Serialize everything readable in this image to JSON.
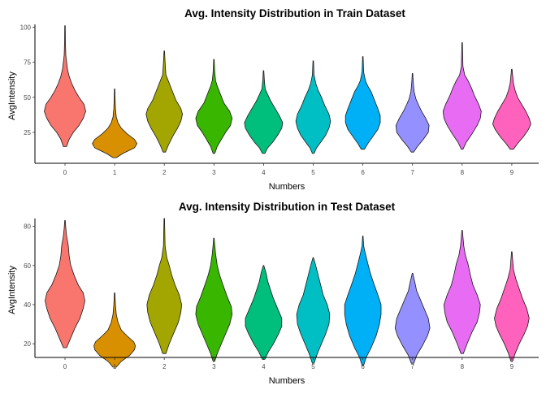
{
  "chart_data": [
    {
      "type": "violin",
      "title": "Avg. Intensity Distribution in Train Dataset",
      "xlabel": "Numbers",
      "ylabel": "AvgIntensity",
      "ylim": [
        3,
        102
      ],
      "yticks": [
        25,
        50,
        75,
        100
      ],
      "categories": [
        "0",
        "1",
        "2",
        "3",
        "4",
        "5",
        "6",
        "7",
        "8",
        "9"
      ],
      "colors": [
        "#F8766D",
        "#D89000",
        "#A3A500",
        "#39B600",
        "#00BF7D",
        "#00BFC4",
        "#00B0F6",
        "#9590FF",
        "#E76BF3",
        "#FF62BC"
      ],
      "violins": [
        {
          "min": 15,
          "max": 101,
          "profile": [
            [
              15,
              2
            ],
            [
              20,
              5
            ],
            [
              25,
              10
            ],
            [
              30,
              17
            ],
            [
              35,
              22
            ],
            [
              40,
              25
            ],
            [
              45,
              23
            ],
            [
              50,
              17
            ],
            [
              55,
              12
            ],
            [
              60,
              8
            ],
            [
              65,
              5
            ],
            [
              70,
              3
            ],
            [
              75,
              2
            ],
            [
              80,
              1
            ],
            [
              90,
              0.5
            ],
            [
              101,
              0.3
            ]
          ]
        },
        {
          "min": 7,
          "max": 56,
          "profile": [
            [
              7,
              2
            ],
            [
              10,
              10
            ],
            [
              14,
              24
            ],
            [
              17,
              27
            ],
            [
              20,
              24
            ],
            [
              24,
              15
            ],
            [
              28,
              8
            ],
            [
              32,
              4
            ],
            [
              36,
              2
            ],
            [
              42,
              1
            ],
            [
              50,
              0.5
            ],
            [
              56,
              0.3
            ]
          ]
        },
        {
          "min": 11,
          "max": 83,
          "profile": [
            [
              11,
              1.5
            ],
            [
              16,
              5
            ],
            [
              22,
              10
            ],
            [
              28,
              16
            ],
            [
              33,
              20
            ],
            [
              38,
              22
            ],
            [
              42,
              20
            ],
            [
              48,
              14
            ],
            [
              54,
              10
            ],
            [
              60,
              6
            ],
            [
              66,
              2
            ],
            [
              75,
              1
            ],
            [
              83,
              0.3
            ]
          ]
        },
        {
          "min": 10,
          "max": 77,
          "profile": [
            [
              10,
              1
            ],
            [
              15,
              4
            ],
            [
              20,
              9
            ],
            [
              25,
              14
            ],
            [
              30,
              20
            ],
            [
              35,
              22
            ],
            [
              40,
              19
            ],
            [
              46,
              12
            ],
            [
              52,
              8
            ],
            [
              58,
              4
            ],
            [
              62,
              2
            ],
            [
              68,
              1
            ],
            [
              77,
              0.3
            ]
          ]
        },
        {
          "min": 10,
          "max": 69,
          "profile": [
            [
              10,
              1.5
            ],
            [
              14,
              5
            ],
            [
              18,
              11
            ],
            [
              23,
              17
            ],
            [
              28,
              22
            ],
            [
              32,
              23
            ],
            [
              37,
              19
            ],
            [
              42,
              14
            ],
            [
              47,
              9
            ],
            [
              52,
              5
            ],
            [
              56,
              2
            ],
            [
              62,
              1
            ],
            [
              69,
              0.3
            ]
          ]
        },
        {
          "min": 10,
          "max": 76,
          "profile": [
            [
              10,
              1
            ],
            [
              14,
              4
            ],
            [
              18,
              9
            ],
            [
              23,
              15
            ],
            [
              28,
              19
            ],
            [
              33,
              21
            ],
            [
              38,
              19
            ],
            [
              44,
              14
            ],
            [
              50,
              10
            ],
            [
              55,
              6
            ],
            [
              60,
              3
            ],
            [
              66,
              1
            ],
            [
              76,
              0.3
            ]
          ]
        },
        {
          "min": 13,
          "max": 79,
          "profile": [
            [
              13,
              2
            ],
            [
              17,
              6
            ],
            [
              22,
              12
            ],
            [
              27,
              18
            ],
            [
              32,
              21
            ],
            [
              37,
              21
            ],
            [
              42,
              18
            ],
            [
              48,
              14
            ],
            [
              54,
              10
            ],
            [
              58,
              6
            ],
            [
              62,
              3
            ],
            [
              68,
              1
            ],
            [
              79,
              0.3
            ]
          ]
        },
        {
          "min": 11,
          "max": 67,
          "profile": [
            [
              11,
              1.5
            ],
            [
              15,
              6
            ],
            [
              20,
              13
            ],
            [
              25,
              19
            ],
            [
              30,
              20
            ],
            [
              35,
              16
            ],
            [
              40,
              11
            ],
            [
              45,
              7
            ],
            [
              49,
              4
            ],
            [
              54,
              2
            ],
            [
              60,
              1
            ],
            [
              67,
              0.3
            ]
          ]
        },
        {
          "min": 13,
          "max": 89,
          "profile": [
            [
              13,
              1
            ],
            [
              18,
              5
            ],
            [
              24,
              12
            ],
            [
              30,
              18
            ],
            [
              35,
              22
            ],
            [
              40,
              23
            ],
            [
              45,
              20
            ],
            [
              51,
              15
            ],
            [
              57,
              11
            ],
            [
              62,
              7
            ],
            [
              66,
              3
            ],
            [
              72,
              1
            ],
            [
              89,
              0.3
            ]
          ]
        },
        {
          "min": 13,
          "max": 70,
          "profile": [
            [
              13,
              2
            ],
            [
              17,
              7
            ],
            [
              22,
              14
            ],
            [
              27,
              20
            ],
            [
              31,
              23
            ],
            [
              35,
              21
            ],
            [
              40,
              17
            ],
            [
              45,
              12
            ],
            [
              50,
              7
            ],
            [
              55,
              4
            ],
            [
              60,
              2
            ],
            [
              70,
              0.3
            ]
          ]
        }
      ]
    },
    {
      "type": "violin",
      "title": "Avg. Intensity Distribution in Test Dataset",
      "xlabel": "Numbers",
      "ylabel": "AvgIntensity",
      "ylim": [
        13,
        84
      ],
      "yticks": [
        20,
        40,
        60,
        80
      ],
      "categories": [
        "0",
        "1",
        "2",
        "3",
        "4",
        "5",
        "6",
        "7",
        "8",
        "9"
      ],
      "colors": [
        "#F8766D",
        "#D89000",
        "#A3A500",
        "#39B600",
        "#00BF7D",
        "#00BFC4",
        "#00B0F6",
        "#9590FF",
        "#E76BF3",
        "#FF62BC"
      ],
      "violins": [
        {
          "min": 18,
          "max": 83,
          "profile": [
            [
              18,
              2
            ],
            [
              22,
              6
            ],
            [
              28,
              12
            ],
            [
              33,
              18
            ],
            [
              38,
              22
            ],
            [
              42,
              24
            ],
            [
              46,
              22
            ],
            [
              50,
              16
            ],
            [
              55,
              11
            ],
            [
              60,
              7
            ],
            [
              65,
              5
            ],
            [
              70,
              4
            ],
            [
              75,
              2
            ],
            [
              79,
              1
            ],
            [
              83,
              0.3
            ]
          ]
        },
        {
          "min": 8,
          "max": 46,
          "profile": [
            [
              8,
              2
            ],
            [
              11,
              8
            ],
            [
              14,
              18
            ],
            [
              17,
              24
            ],
            [
              19,
              25
            ],
            [
              21,
              23
            ],
            [
              24,
              15
            ],
            [
              27,
              8
            ],
            [
              31,
              4
            ],
            [
              35,
              2
            ],
            [
              40,
              1
            ],
            [
              46,
              0.3
            ]
          ]
        },
        {
          "min": 15,
          "max": 84,
          "profile": [
            [
              15,
              2
            ],
            [
              20,
              6
            ],
            [
              26,
              12
            ],
            [
              31,
              17
            ],
            [
              36,
              20
            ],
            [
              40,
              21
            ],
            [
              45,
              18
            ],
            [
              50,
              13
            ],
            [
              55,
              9
            ],
            [
              60,
              6
            ],
            [
              64,
              3
            ],
            [
              70,
              1
            ],
            [
              84,
              0.3
            ]
          ]
        },
        {
          "min": 11,
          "max": 74,
          "profile": [
            [
              11,
              1
            ],
            [
              15,
              4
            ],
            [
              20,
              9
            ],
            [
              25,
              14
            ],
            [
              30,
              19
            ],
            [
              35,
              22
            ],
            [
              39,
              21
            ],
            [
              44,
              16
            ],
            [
              50,
              11
            ],
            [
              55,
              7
            ],
            [
              60,
              4
            ],
            [
              66,
              2
            ],
            [
              74,
              0.3
            ]
          ]
        },
        {
          "min": 12,
          "max": 60,
          "profile": [
            [
              12,
              1.5
            ],
            [
              16,
              6
            ],
            [
              20,
              12
            ],
            [
              25,
              18
            ],
            [
              29,
              22
            ],
            [
              33,
              22
            ],
            [
              38,
              17
            ],
            [
              43,
              12
            ],
            [
              48,
              8
            ],
            [
              52,
              5
            ],
            [
              56,
              3
            ],
            [
              60,
              0.3
            ]
          ]
        },
        {
          "min": 10,
          "max": 64,
          "profile": [
            [
              10,
              1
            ],
            [
              15,
              5
            ],
            [
              20,
              10
            ],
            [
              25,
              15
            ],
            [
              30,
              19
            ],
            [
              35,
              20
            ],
            [
              40,
              17
            ],
            [
              45,
              12
            ],
            [
              50,
              9
            ],
            [
              55,
              6
            ],
            [
              60,
              3
            ],
            [
              64,
              0.3
            ]
          ]
        },
        {
          "min": 9,
          "max": 75,
          "profile": [
            [
              9,
              1
            ],
            [
              13,
              4
            ],
            [
              18,
              10
            ],
            [
              24,
              16
            ],
            [
              30,
              20
            ],
            [
              35,
              22
            ],
            [
              40,
              22
            ],
            [
              45,
              18
            ],
            [
              51,
              13
            ],
            [
              56,
              9
            ],
            [
              61,
              6
            ],
            [
              66,
              3
            ],
            [
              70,
              1
            ],
            [
              75,
              0.3
            ]
          ]
        },
        {
          "min": 10,
          "max": 56,
          "profile": [
            [
              10,
              1.5
            ],
            [
              14,
              5
            ],
            [
              19,
              12
            ],
            [
              24,
              18
            ],
            [
              28,
              21
            ],
            [
              33,
              19
            ],
            [
              38,
              14
            ],
            [
              43,
              9
            ],
            [
              47,
              5
            ],
            [
              51,
              3
            ],
            [
              56,
              0.3
            ]
          ]
        },
        {
          "min": 15,
          "max": 78,
          "profile": [
            [
              15,
              1.5
            ],
            [
              20,
              6
            ],
            [
              26,
              12
            ],
            [
              31,
              18
            ],
            [
              36,
              21
            ],
            [
              40,
              22
            ],
            [
              45,
              18
            ],
            [
              50,
              13
            ],
            [
              55,
              10
            ],
            [
              61,
              7
            ],
            [
              65,
              4
            ],
            [
              70,
              2
            ],
            [
              78,
              0.3
            ]
          ]
        },
        {
          "min": 11,
          "max": 67,
          "profile": [
            [
              11,
              1
            ],
            [
              15,
              4
            ],
            [
              20,
              9
            ],
            [
              25,
              15
            ],
            [
              29,
              19
            ],
            [
              33,
              21
            ],
            [
              38,
              18
            ],
            [
              43,
              13
            ],
            [
              48,
              9
            ],
            [
              53,
              5
            ],
            [
              58,
              2
            ],
            [
              67,
              0.3
            ]
          ]
        }
      ]
    }
  ]
}
